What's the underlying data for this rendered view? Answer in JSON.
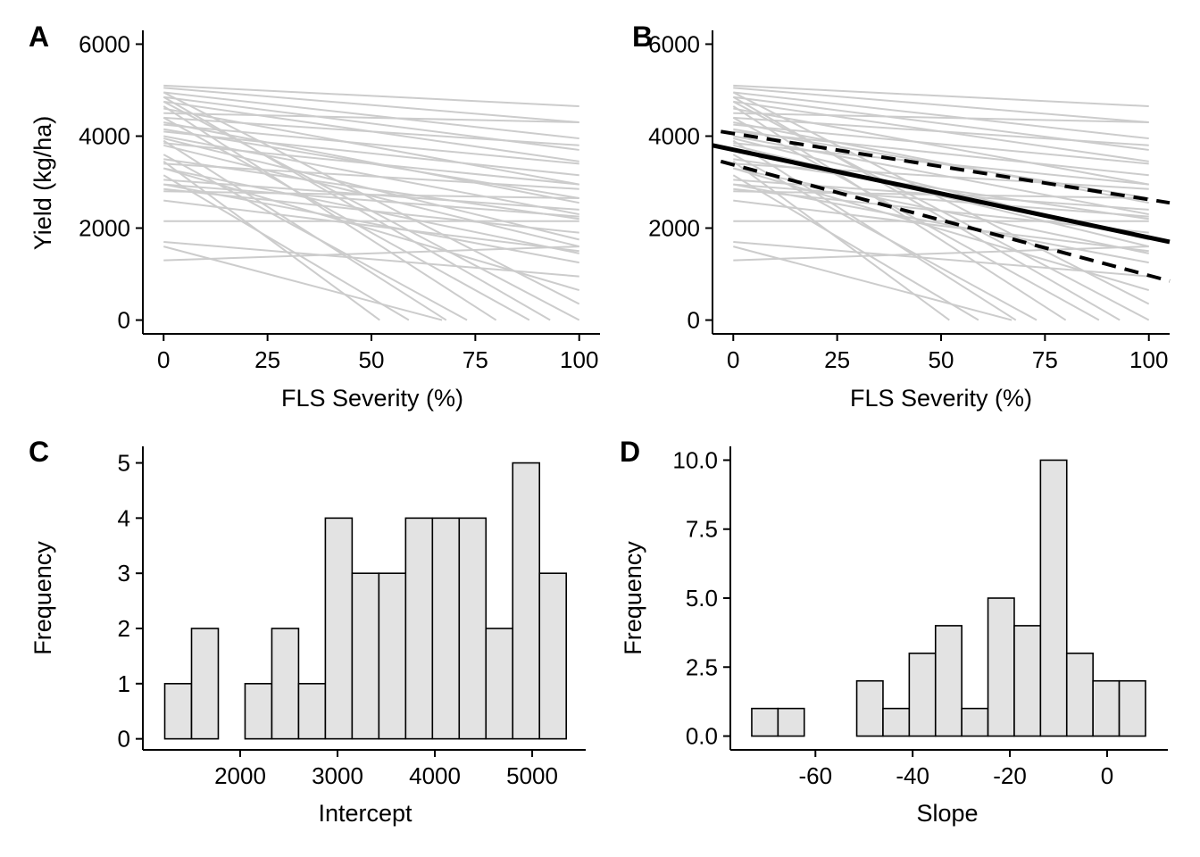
{
  "chart_data": [
    {
      "panel": "A",
      "type": "line",
      "xlabel": "FLS Severity (%)",
      "ylabel": "Yield (kg/ha)",
      "xlim": [
        -5,
        105
      ],
      "ylim": [
        -300,
        6300
      ],
      "xticks": [
        0,
        25,
        50,
        75,
        100
      ],
      "yticks": [
        0,
        2000,
        4000,
        6000
      ],
      "grid": false,
      "series": [
        {
          "x": [
            0,
            100
          ],
          "y": [
            5100,
            4650
          ]
        },
        {
          "x": [
            0,
            100
          ],
          "y": [
            5050,
            4300
          ]
        },
        {
          "x": [
            0,
            100
          ],
          "y": [
            4950,
            3950
          ]
        },
        {
          "x": [
            0,
            100
          ],
          "y": [
            4850,
            3700
          ]
        },
        {
          "x": [
            0,
            100
          ],
          "y": [
            4750,
            3450
          ]
        },
        {
          "x": [
            0,
            100
          ],
          "y": [
            4600,
            2950
          ]
        },
        {
          "x": [
            0,
            100
          ],
          "y": [
            4500,
            4300
          ]
        },
        {
          "x": [
            0,
            100
          ],
          "y": [
            4400,
            3800
          ]
        },
        {
          "x": [
            0,
            100
          ],
          "y": [
            4300,
            2550
          ]
        },
        {
          "x": [
            0,
            100
          ],
          "y": [
            4250,
            3400
          ]
        },
        {
          "x": [
            0,
            100
          ],
          "y": [
            4150,
            2650
          ]
        },
        {
          "x": [
            0,
            100
          ],
          "y": [
            4100,
            3150
          ]
        },
        {
          "x": [
            0,
            100
          ],
          "y": [
            4000,
            2300
          ]
        },
        {
          "x": [
            0,
            100
          ],
          "y": [
            3950,
            1750
          ]
        },
        {
          "x": [
            0,
            100
          ],
          "y": [
            3850,
            2950
          ]
        },
        {
          "x": [
            0,
            100
          ],
          "y": [
            3800,
            1600
          ]
        },
        {
          "x": [
            0,
            100
          ],
          "y": [
            3500,
            2200
          ]
        },
        {
          "x": [
            0,
            100
          ],
          "y": [
            3400,
            2850
          ]
        },
        {
          "x": [
            0,
            100
          ],
          "y": [
            3300,
            1450
          ]
        },
        {
          "x": [
            0,
            100
          ],
          "y": [
            3050,
            2400
          ]
        },
        {
          "x": [
            0,
            100
          ],
          "y": [
            2950,
            2250
          ]
        },
        {
          "x": [
            0,
            100
          ],
          "y": [
            2850,
            1900
          ]
        },
        {
          "x": [
            0,
            100
          ],
          "y": [
            2800,
            2650
          ]
        },
        {
          "x": [
            0,
            100
          ],
          "y": [
            2600,
            1500
          ]
        },
        {
          "x": [
            0,
            100
          ],
          "y": [
            2150,
            2150
          ]
        },
        {
          "x": [
            0,
            100
          ],
          "y": [
            1300,
            1600
          ]
        },
        {
          "x": [
            0,
            100
          ],
          "y": [
            4950,
            350
          ]
        },
        {
          "x": [
            0,
            100
          ],
          "y": [
            3300,
            650
          ]
        },
        {
          "x": [
            0,
            100
          ],
          "y": [
            2950,
            1250
          ]
        },
        {
          "x": [
            0,
            100
          ],
          "y": [
            1700,
            950
          ]
        },
        {
          "x": [
            0,
            93
          ],
          "y": [
            4850,
            0
          ]
        },
        {
          "x": [
            0,
            100
          ],
          "y": [
            4750,
            0
          ]
        },
        {
          "x": [
            0,
            80
          ],
          "y": [
            4650,
            0
          ]
        },
        {
          "x": [
            0,
            88
          ],
          "y": [
            4400,
            0
          ]
        },
        {
          "x": [
            0,
            68
          ],
          "y": [
            3900,
            0
          ]
        },
        {
          "x": [
            0,
            73
          ],
          "y": [
            3600,
            0
          ]
        },
        {
          "x": [
            0,
            52
          ],
          "y": [
            3450,
            0
          ]
        },
        {
          "x": [
            0,
            59
          ],
          "y": [
            3150,
            0
          ]
        },
        {
          "x": [
            0,
            67
          ],
          "y": [
            1600,
            0
          ]
        }
      ]
    },
    {
      "panel": "B",
      "type": "line",
      "xlabel": "FLS Severity (%)",
      "ylabel": "",
      "xlim": [
        -5,
        105
      ],
      "ylim": [
        -300,
        6300
      ],
      "xticks": [
        0,
        25,
        50,
        75,
        100
      ],
      "yticks": [
        0,
        2000,
        4000,
        6000
      ],
      "grid": false,
      "series_same_as_panel": "A",
      "fit": {
        "x": [
          -5,
          105
        ],
        "y": [
          3800,
          1700
        ]
      },
      "ci_upper": {
        "x": [
          -3,
          105
        ],
        "y": [
          4100,
          2550
        ]
      },
      "ci_lower": {
        "x": [
          -3,
          105
        ],
        "y": [
          3450,
          850
        ]
      }
    },
    {
      "panel": "C",
      "type": "bar",
      "xlabel": "Intercept",
      "ylabel": "Frequency",
      "xlim": [
        1000,
        5550
      ],
      "ylim": [
        -0.2,
        5.3
      ],
      "xticks": [
        2000,
        3000,
        4000,
        5000
      ],
      "yticks": [
        0,
        1,
        2,
        3,
        4,
        5
      ],
      "bin_width": 275,
      "bin_start": 1225,
      "values": [
        1,
        2,
        0,
        1,
        2,
        1,
        4,
        3,
        3,
        4,
        4,
        4,
        2,
        5,
        3
      ]
    },
    {
      "panel": "D",
      "type": "bar",
      "xlabel": "Slope",
      "ylabel": "Frequency",
      "xlim": [
        -77.5,
        12.5
      ],
      "ylim": [
        -0.5,
        10.5
      ],
      "xticks": [
        -60,
        -40,
        -20,
        0
      ],
      "ytick_labels": [
        "0.0",
        "2.5",
        "5.0",
        "7.5",
        "10.0"
      ],
      "yticks": [
        0,
        2.5,
        5,
        7.5,
        10
      ],
      "bin_width": 5.4,
      "bin_start": -73.1,
      "values": [
        1,
        1,
        0,
        0,
        2,
        1,
        3,
        4,
        1,
        5,
        4,
        10,
        3,
        2,
        2
      ]
    }
  ]
}
